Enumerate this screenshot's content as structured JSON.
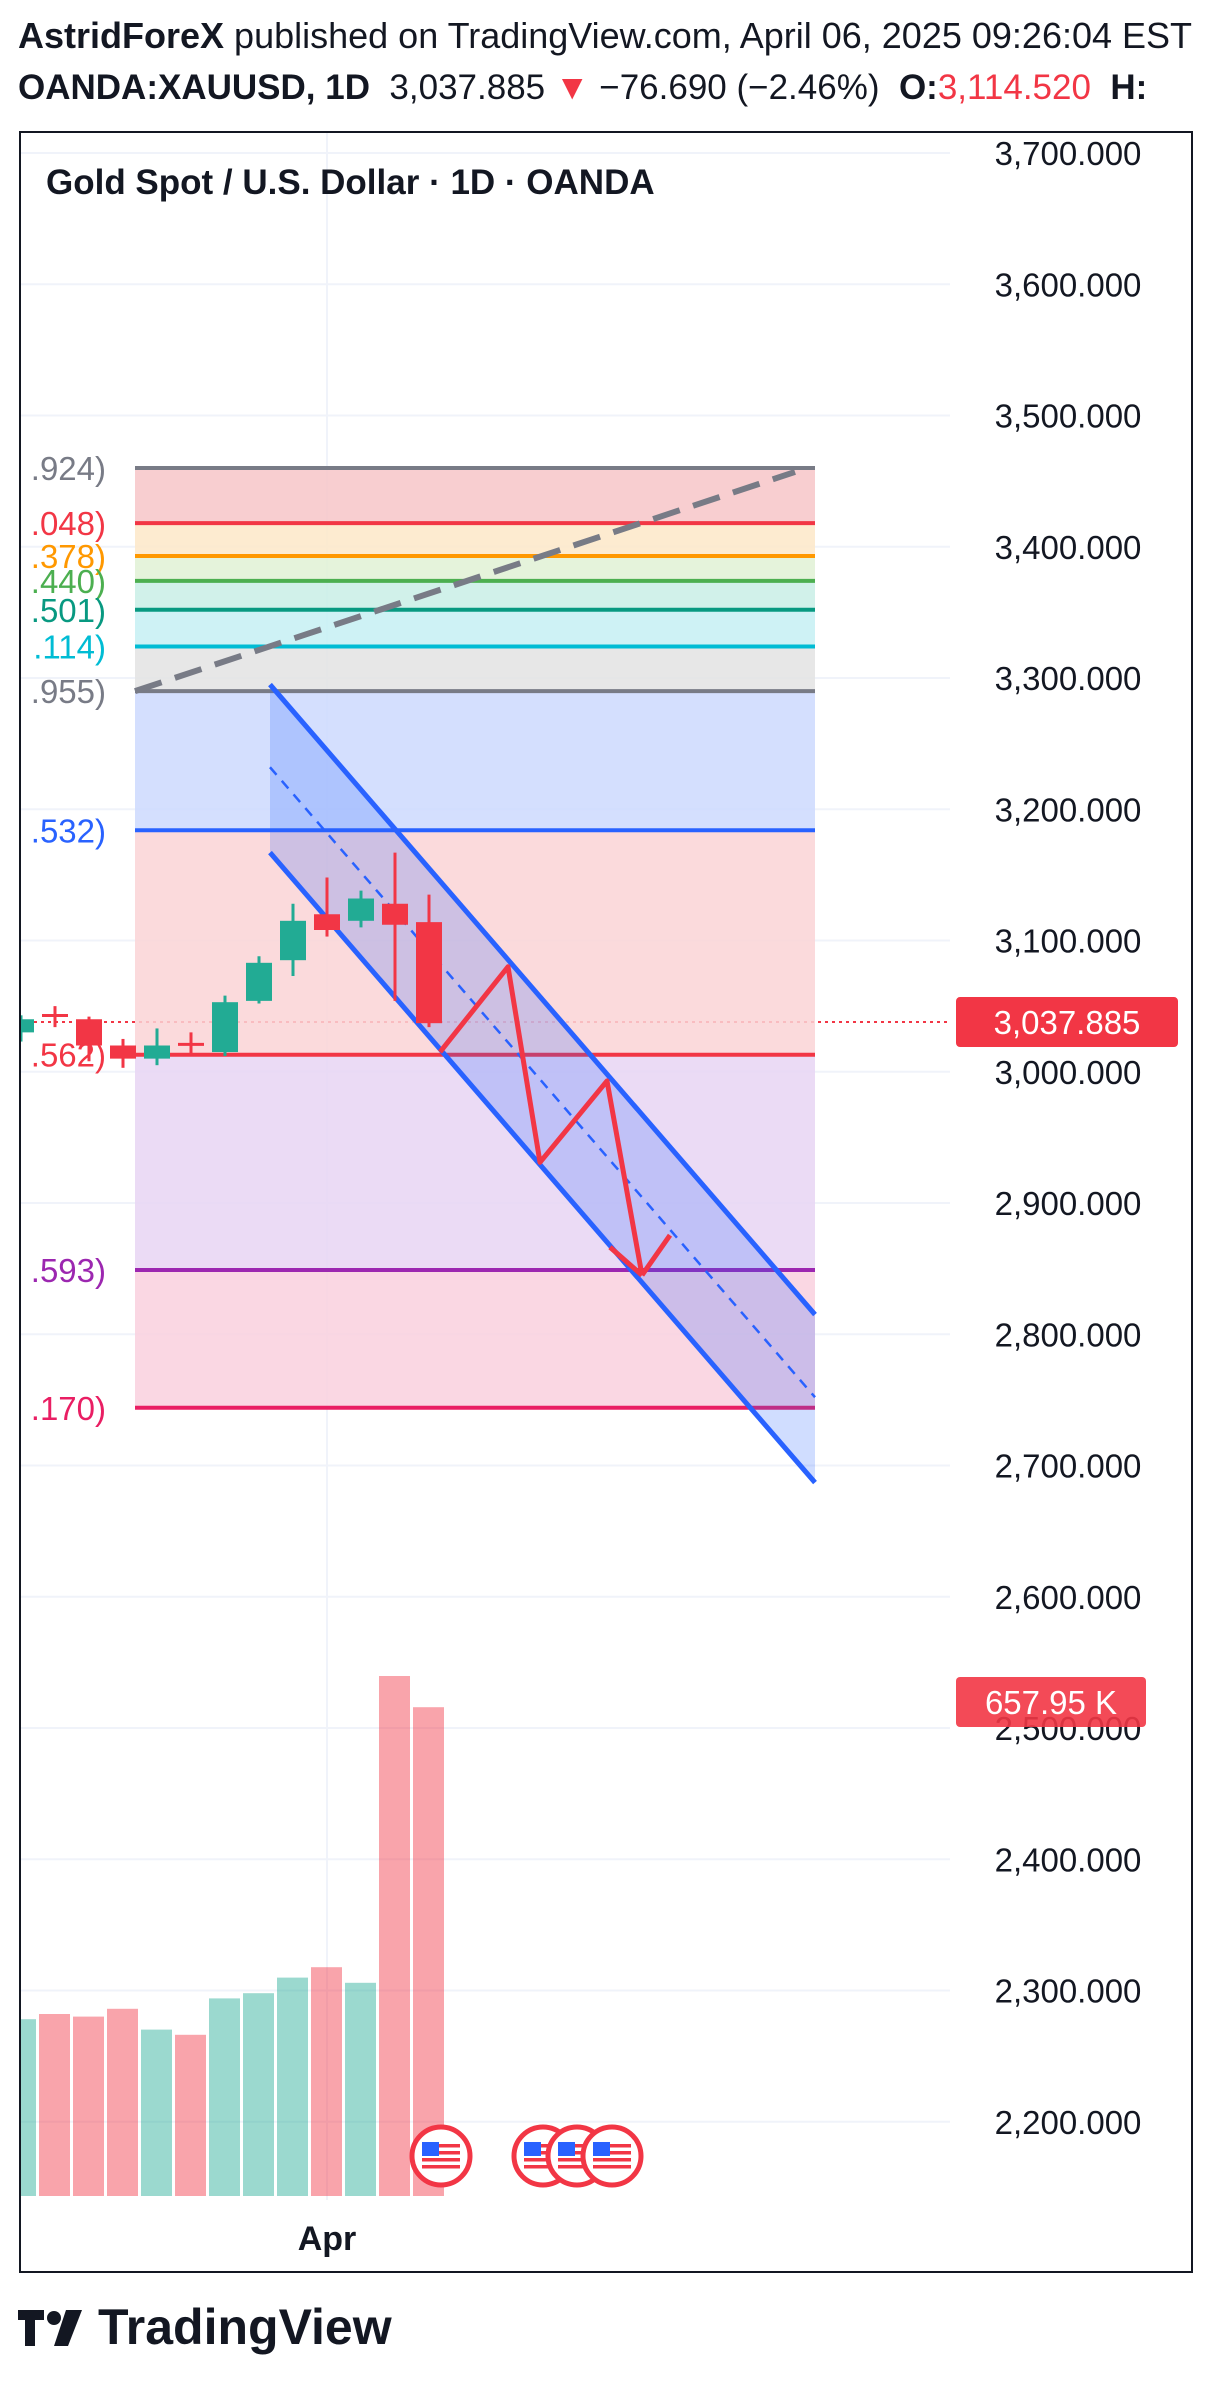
{
  "header": {
    "author": "AstridForeX",
    "published": " published on TradingView.com, April 06, 2025 09:26:04 EST",
    "symbol": "OANDA:XAUUSD, 1D",
    "price": "3,037.885",
    "change": "−76.690 (−2.46%)",
    "open_label": "O:",
    "open_value": "3,114.520",
    "high_label": "H:"
  },
  "chart_title": "Gold Spot / U.S. Dollar · 1D · OANDA",
  "footer_brand": "TradingView",
  "colors": {
    "up": "#22ab94",
    "down": "#f23645",
    "channel": "#2962ff",
    "axis_text": "#131722"
  },
  "chart_data": {
    "type": "candlestick",
    "price_axis": {
      "range": [
        2130,
        3710
      ],
      "ticks": [
        "3,700.000",
        "3,600.000",
        "3,500.000",
        "3,400.000",
        "3,300.000",
        "3,200.000",
        "3,100.000",
        "3,000.000",
        "2,900.000",
        "2,800.000",
        "2,700.000",
        "2,600.000",
        "2,500.000",
        "2,400.000",
        "2,300.000",
        "2,200.000"
      ],
      "tick_values": [
        3700,
        3600,
        3500,
        3400,
        3300,
        3200,
        3100,
        3000,
        2900,
        2800,
        2700,
        2600,
        2500,
        2400,
        2300,
        2200
      ]
    },
    "x_axis": {
      "label": "Apr",
      "label_index": 9
    },
    "current_price_label": "3,037.885",
    "current_price": 3037.885,
    "volume_label": "657.95 K",
    "candles": [
      {
        "o": 3030,
        "h": 3043,
        "l": 3023,
        "c": 3040,
        "dir": "up"
      },
      {
        "o": 3044,
        "h": 3050,
        "l": 3034,
        "c": 3042,
        "dir": "down"
      },
      {
        "o": 3040,
        "h": 3042,
        "l": 3008,
        "c": 3020,
        "dir": "down"
      },
      {
        "o": 3020,
        "h": 3025,
        "l": 3003,
        "c": 3010,
        "dir": "down"
      },
      {
        "o": 3010,
        "h": 3033,
        "l": 3005,
        "c": 3020,
        "dir": "up"
      },
      {
        "o": 3022,
        "h": 3030,
        "l": 3012,
        "c": 3020,
        "dir": "down"
      },
      {
        "o": 3015,
        "h": 3058,
        "l": 3012,
        "c": 3053,
        "dir": "up"
      },
      {
        "o": 3054,
        "h": 3088,
        "l": 3052,
        "c": 3083,
        "dir": "up"
      },
      {
        "o": 3085,
        "h": 3128,
        "l": 3073,
        "c": 3115,
        "dir": "up"
      },
      {
        "o": 3120,
        "h": 3148,
        "l": 3103,
        "c": 3108,
        "dir": "down"
      },
      {
        "o": 3115,
        "h": 3138,
        "l": 3110,
        "c": 3132,
        "dir": "up"
      },
      {
        "o": 3128,
        "h": 3167,
        "l": 3054,
        "c": 3112,
        "dir": "down"
      },
      {
        "o": 3114,
        "h": 3135,
        "l": 3034,
        "c": 3037,
        "dir": "down"
      }
    ],
    "volume": [
      {
        "v": 0.34,
        "dir": "up"
      },
      {
        "v": 0.35,
        "dir": "down"
      },
      {
        "v": 0.345,
        "dir": "down"
      },
      {
        "v": 0.36,
        "dir": "down"
      },
      {
        "v": 0.32,
        "dir": "up"
      },
      {
        "v": 0.31,
        "dir": "down"
      },
      {
        "v": 0.38,
        "dir": "up"
      },
      {
        "v": 0.39,
        "dir": "up"
      },
      {
        "v": 0.42,
        "dir": "up"
      },
      {
        "v": 0.44,
        "dir": "down"
      },
      {
        "v": 0.41,
        "dir": "up"
      },
      {
        "v": 1.0,
        "dir": "down"
      },
      {
        "v": 0.94,
        "dir": "down"
      }
    ],
    "fib_levels": [
      {
        "label": ".924)",
        "price": 3460,
        "color": "#787b86",
        "fill": "#f7c5c8"
      },
      {
        "label": ".048)",
        "price": 3418,
        "color": "#f23645",
        "fill": "#fde8c8"
      },
      {
        "label": ".378)",
        "price": 3393,
        "color": "#ff9800",
        "fill": "#e0f1d5"
      },
      {
        "label": ".440)",
        "price": 3374,
        "color": "#4caf50",
        "fill": "#c9eee6"
      },
      {
        "label": ".501)",
        "price": 3352,
        "color": "#089981",
        "fill": "#c6f0f3"
      },
      {
        "label": ".114)",
        "price": 3324,
        "color": "#00bcd4",
        "fill": "#e3e3e3"
      },
      {
        "label": ".955)",
        "price": 3290,
        "color": "#787b86",
        "fill": "#cdd9fe"
      },
      {
        "label": ".532)",
        "price": 3184,
        "color": "#2962ff",
        "fill": "#fad4d6"
      },
      {
        "label": ".562)",
        "price": 3013,
        "color": "#f23645",
        "fill": "#e8d5f3"
      },
      {
        "label": ".593)",
        "price": 2849,
        "color": "#9c27b0",
        "fill": "#f9d0de"
      },
      {
        "label": ".170)",
        "price": 2744,
        "color": "#e91e63",
        "fill": null
      }
    ]
  }
}
